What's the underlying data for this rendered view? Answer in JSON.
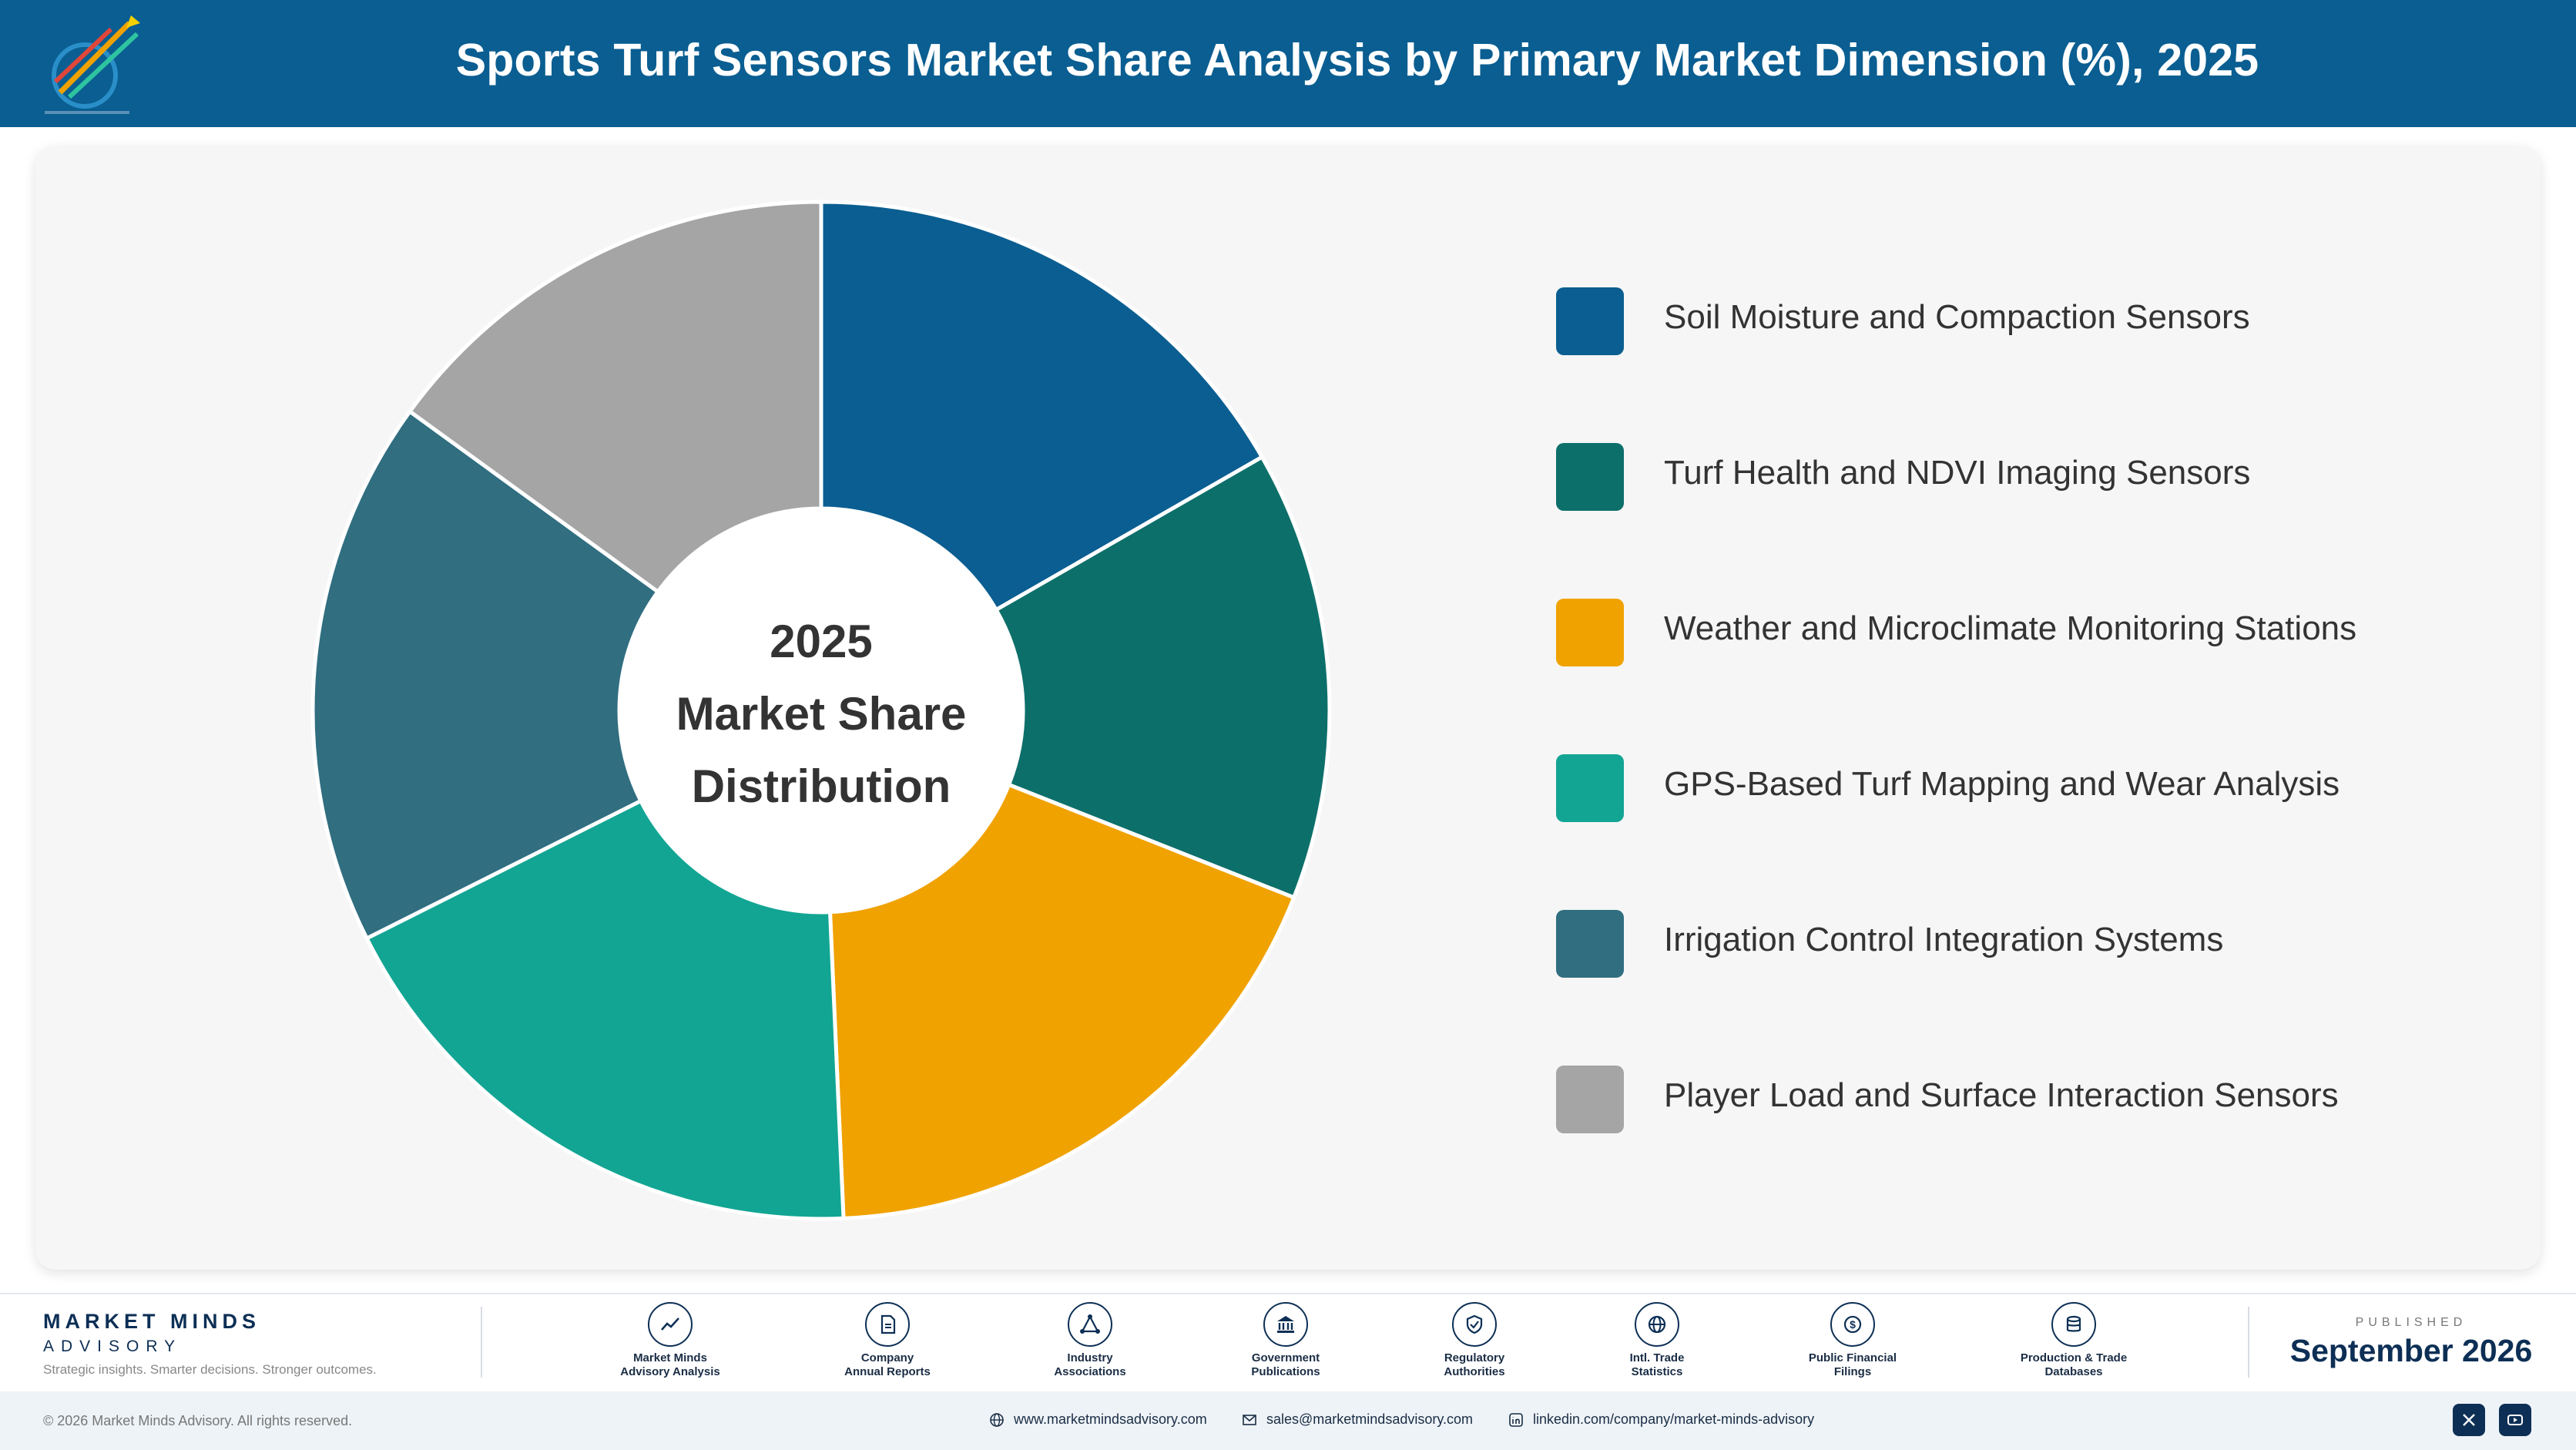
{
  "header": {
    "title": "Sports Turf Sensors Market Share Analysis by Primary Market Dimension (%), 2025"
  },
  "chart_data": {
    "type": "pie",
    "variant": "donut",
    "center_label": [
      "2025",
      "Market Share",
      "Distribution"
    ],
    "slices": [
      {
        "label": "Soil Moisture and Compaction Sensors",
        "value": 16.7,
        "color": "#0a5e91"
      },
      {
        "label": "Turf Health and NDVI Imaging Sensors",
        "value": 14.3,
        "color": "#0d6f6a"
      },
      {
        "label": "Weather and Microclimate Monitoring Stations",
        "value": 18.3,
        "color": "#f0a200"
      },
      {
        "label": "GPS-Based Turf Mapping and Wear Analysis",
        "value": 18.3,
        "color": "#12a593"
      },
      {
        "label": "Irrigation Control Integration Systems",
        "value": 17.4,
        "color": "#306e80"
      },
      {
        "label": "Player Load and Surface Interaction Sensors",
        "value": 15.0,
        "color": "#a5a5a5"
      }
    ],
    "legend_placement": "right"
  },
  "footer": {
    "brand_name": "MARKET MINDS",
    "brand_sub": "ADVISORY",
    "tagline": "Strategic insights. Smarter decisions. Stronger outcomes.",
    "sources": [
      {
        "label1": "Market Minds",
        "label2": "Advisory Analysis",
        "icon": "chart-line-icon"
      },
      {
        "label1": "Company",
        "label2": "Annual Reports",
        "icon": "document-icon"
      },
      {
        "label1": "Industry",
        "label2": "Associations",
        "icon": "network-icon"
      },
      {
        "label1": "Government",
        "label2": "Publications",
        "icon": "government-building-icon"
      },
      {
        "label1": "Regulatory",
        "label2": "Authorities",
        "icon": "shield-check-icon"
      },
      {
        "label1": "Intl. Trade",
        "label2": "Statistics",
        "icon": "globe-icon"
      },
      {
        "label1": "Public Financial",
        "label2": "Filings",
        "icon": "dollar-coin-icon"
      },
      {
        "label1": "Production & Trade",
        "label2": "Databases",
        "icon": "database-icon"
      }
    ],
    "published_label": "PUBLISHED",
    "published_date": "September 2026",
    "copyright": "© 2026 Market Minds Advisory. All rights reserved.",
    "website": "www.marketmindsadvisory.com",
    "email": "sales@marketmindsadvisory.com",
    "linkedin": "linkedin.com/company/market-minds-advisory"
  }
}
